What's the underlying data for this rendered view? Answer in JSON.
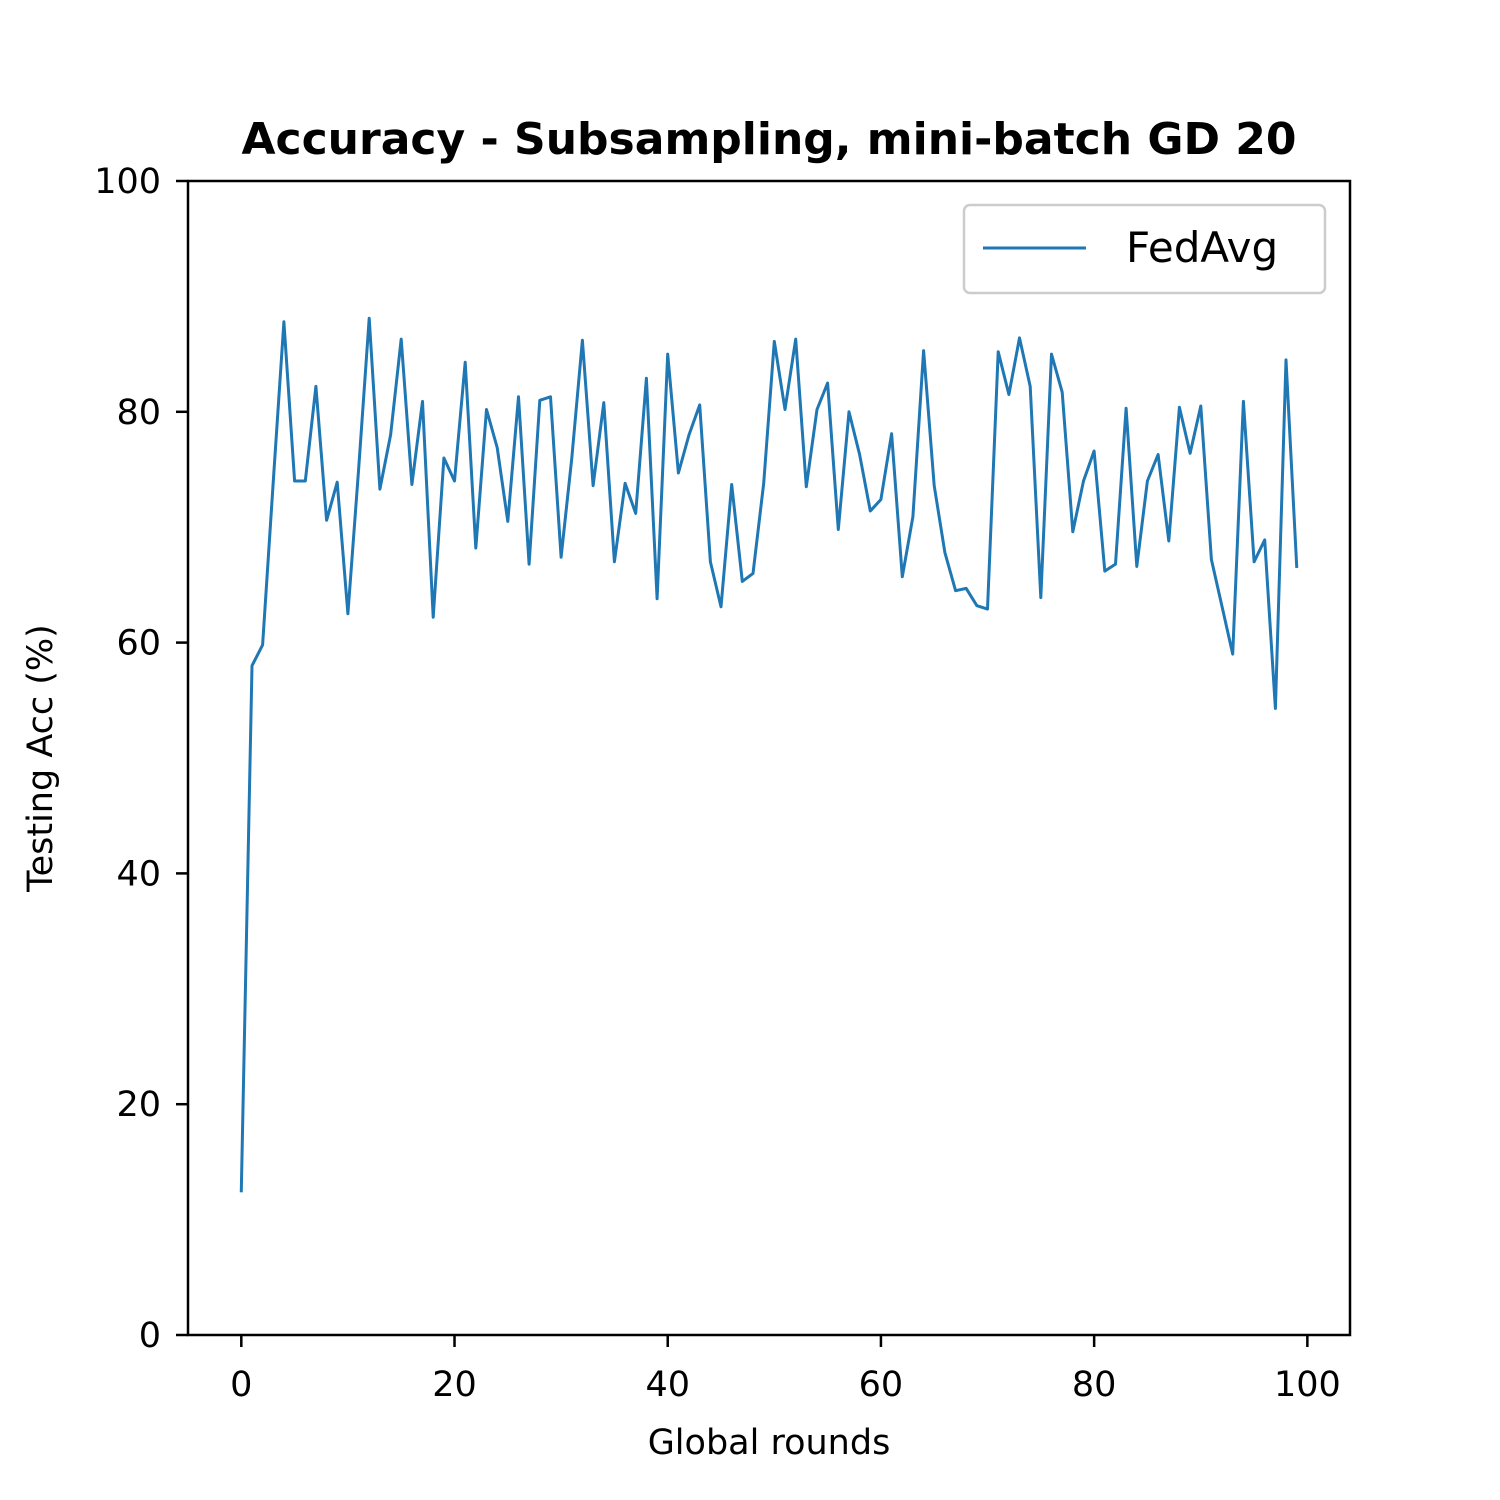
{
  "chart_data": {
    "type": "line",
    "title": "Accuracy - Subsampling, mini-batch GD 20",
    "xlabel": "Global rounds",
    "ylabel": "Testing Acc (%)",
    "xlim": [
      -5,
      104
    ],
    "ylim": [
      0,
      100
    ],
    "xticks": [
      0,
      20,
      40,
      60,
      80,
      100
    ],
    "yticks": [
      0,
      20,
      40,
      60,
      80,
      100
    ],
    "grid": false,
    "legend": {
      "placement": "top-right",
      "entries": [
        "FedAvg"
      ]
    },
    "series": [
      {
        "name": "FedAvg",
        "color": "#1f77b4",
        "x": [
          0,
          1,
          2,
          3,
          4,
          5,
          6,
          7,
          8,
          9,
          10,
          11,
          12,
          13,
          14,
          15,
          16,
          17,
          18,
          19,
          20,
          21,
          22,
          23,
          24,
          25,
          26,
          27,
          28,
          29,
          30,
          31,
          32,
          33,
          34,
          35,
          36,
          37,
          38,
          39,
          40,
          41,
          42,
          43,
          44,
          45,
          46,
          47,
          48,
          49,
          50,
          51,
          52,
          53,
          54,
          55,
          56,
          57,
          58,
          59,
          60,
          61,
          62,
          63,
          64,
          65,
          66,
          67,
          68,
          69,
          70,
          71,
          72,
          73,
          74,
          75,
          76,
          77,
          78,
          79,
          80,
          81,
          82,
          83,
          84,
          85,
          86,
          87,
          88,
          89,
          90,
          91,
          92,
          93,
          94,
          95,
          96,
          97,
          98,
          99
        ],
        "values": [
          12.5,
          58.0,
          59.8,
          74.0,
          87.8,
          74.0,
          74.0,
          82.2,
          70.6,
          73.9,
          62.5,
          75.0,
          88.1,
          73.3,
          78.0,
          86.3,
          73.7,
          80.9,
          62.2,
          76.0,
          74.0,
          84.3,
          68.2,
          80.2,
          76.9,
          70.5,
          81.3,
          66.8,
          81.0,
          81.3,
          67.4,
          76.0,
          86.2,
          73.6,
          80.8,
          67.0,
          73.8,
          71.2,
          82.9,
          63.8,
          85.0,
          74.7,
          78.0,
          80.6,
          67.0,
          63.1,
          73.7,
          65.3,
          66.0,
          73.8,
          86.1,
          80.2,
          86.3,
          73.5,
          80.2,
          82.5,
          69.8,
          80.0,
          76.3,
          71.4,
          72.4,
          78.1,
          65.7,
          70.9,
          85.3,
          73.6,
          67.8,
          64.5,
          64.7,
          63.2,
          62.9,
          85.2,
          81.5,
          86.4,
          82.2,
          63.9,
          85.0,
          81.7,
          69.6,
          74.0,
          76.6,
          66.2,
          66.8,
          80.3,
          66.6,
          74.0,
          76.3,
          68.8,
          80.4,
          76.4,
          80.5,
          67.2,
          63.1,
          59.0,
          80.9,
          67.0,
          68.9,
          54.3,
          84.5,
          66.6
        ]
      }
    ]
  }
}
